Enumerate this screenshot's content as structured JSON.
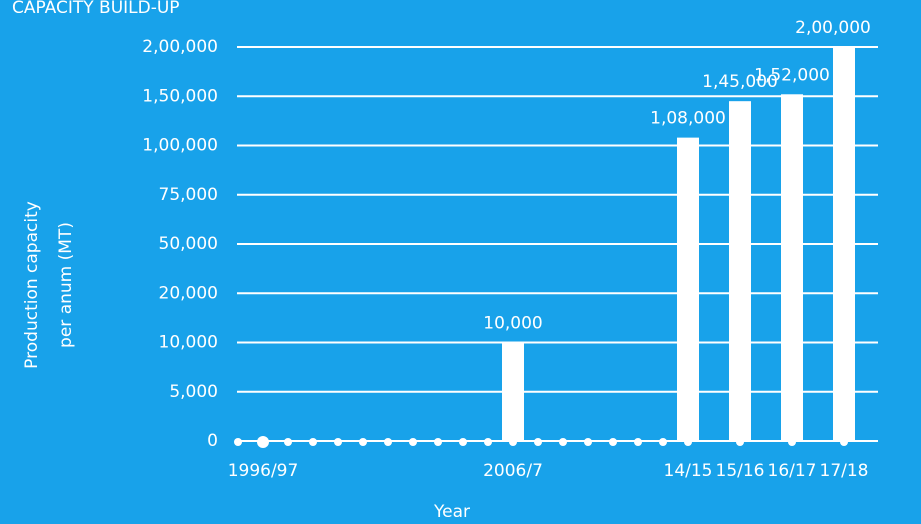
{
  "chart_data": {
    "type": "bar",
    "title": "CAPACITY BUILD-UP",
    "y_label": [
      "Production capacity",
      "per anum (MT)"
    ],
    "x_label": "Year",
    "categories": [
      null,
      "1996/97",
      null,
      null,
      null,
      null,
      null,
      null,
      null,
      null,
      null,
      "2006/7",
      null,
      null,
      null,
      null,
      null,
      null,
      "14/15",
      "15/16",
      "16/17",
      "17/18"
    ],
    "values": [
      null,
      null,
      null,
      null,
      null,
      null,
      null,
      null,
      null,
      null,
      null,
      10000,
      null,
      null,
      null,
      null,
      null,
      null,
      108000,
      145000,
      152000,
      200000
    ],
    "value_labels": [
      null,
      null,
      null,
      null,
      null,
      null,
      null,
      null,
      null,
      null,
      null,
      "10,000",
      null,
      null,
      null,
      null,
      null,
      null,
      "1,08,000",
      "1,45,000",
      "1,52,000",
      "2,00,000"
    ],
    "color": "#ffffff",
    "ylim": [
      0,
      200000
    ],
    "yticks": [
      0,
      {
        "value": 5000,
        "label": "5,000"
      },
      {
        "value": 10000,
        "label": "10,000"
      },
      {
        "value": 20000,
        "label": "20,000"
      },
      {
        "value": 50000,
        "label": "50,000"
      },
      {
        "value": 75000,
        "label": "75,000"
      },
      {
        "value": 100000,
        "label": "1,00,000"
      },
      {
        "value": 150000,
        "label": "1,50,000"
      },
      {
        "value": 200000,
        "label": "2,00,000"
      }
    ],
    "grid": true
  }
}
